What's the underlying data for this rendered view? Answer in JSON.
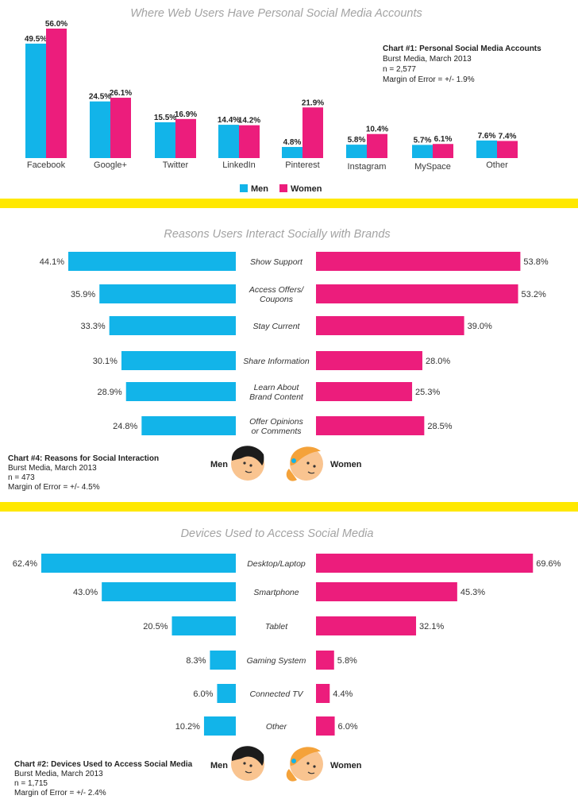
{
  "colors": {
    "men": "#12b4e9",
    "women": "#ec1d7c",
    "divider": "#ffe800"
  },
  "legend": {
    "men": "Men",
    "women": "Women"
  },
  "chart_data": [
    {
      "type": "bar",
      "title": "Where Web Users Have Personal Social Media Accounts",
      "categories": [
        "Facebook",
        "Google+",
        "Twitter",
        "LinkedIn",
        "Pinterest",
        "Instagram",
        "MySpace",
        "Other"
      ],
      "series": [
        {
          "name": "Men",
          "values": [
            49.5,
            24.5,
            15.5,
            14.4,
            4.8,
            5.8,
            5.7,
            7.6
          ],
          "labels": [
            "49.5%",
            "24.5%",
            "15.5%",
            "14.4%",
            "4.8%",
            "5.8%",
            "5.7%",
            "7.6%"
          ]
        },
        {
          "name": "Women",
          "values": [
            56.0,
            26.1,
            16.9,
            14.2,
            21.9,
            10.4,
            6.1,
            7.4
          ],
          "labels": [
            "56.0%",
            "26.1%",
            "16.9%",
            "14.2%",
            "21.9%",
            "10.4%",
            "6.1%",
            "7.4%"
          ]
        }
      ],
      "ylim": [
        0,
        60
      ],
      "legend_position": "bottom",
      "note": {
        "title": "Chart #1: Personal Social Media Accounts",
        "lines": [
          "Burst Media, March 2013",
          "n = 2,577",
          "Margin of Error = +/- 1.9%"
        ]
      }
    },
    {
      "type": "bar",
      "orientation": "horizontal-butterfly",
      "title": "Reasons Users Interact Socially with Brands",
      "categories": [
        [
          "Show Support"
        ],
        [
          "Access Offers/",
          "Coupons"
        ],
        [
          "Stay Current"
        ],
        [
          "Share Information"
        ],
        [
          "Learn About",
          "Brand Content"
        ],
        [
          "Offer Opinions",
          "or Comments"
        ]
      ],
      "series": [
        {
          "name": "Men",
          "values": [
            44.1,
            35.9,
            33.3,
            30.1,
            28.9,
            24.8
          ],
          "labels": [
            "44.1%",
            "35.9%",
            "33.3%",
            "30.1%",
            "28.9%",
            "24.8%"
          ]
        },
        {
          "name": "Women",
          "values": [
            53.8,
            53.2,
            39.0,
            28.0,
            25.3,
            28.5
          ],
          "labels": [
            "53.8%",
            "53.2%",
            "39.0%",
            "28.0%",
            "25.3%",
            "28.5%"
          ]
        }
      ],
      "xlim": [
        0,
        60
      ],
      "note": {
        "title": "Chart #4: Reasons for Social Interaction",
        "lines": [
          "Burst Media, March 2013",
          "n = 473",
          "Margin of Error = +/- 4.5%"
        ]
      }
    },
    {
      "type": "bar",
      "orientation": "horizontal-butterfly",
      "title": "Devices Used to Access Social Media",
      "categories": [
        [
          "Desktop/Laptop"
        ],
        [
          "Smartphone"
        ],
        [
          "Tablet"
        ],
        [
          "Gaming System"
        ],
        [
          "Connected TV"
        ],
        [
          "Other"
        ]
      ],
      "series": [
        {
          "name": "Men",
          "values": [
            62.4,
            43.0,
            20.5,
            8.3,
            6.0,
            10.2
          ],
          "labels": [
            "62.4%",
            "43.0%",
            "20.5%",
            "8.3%",
            "6.0%",
            "10.2%"
          ]
        },
        {
          "name": "Women",
          "values": [
            69.6,
            45.3,
            32.1,
            5.8,
            4.4,
            6.0
          ],
          "labels": [
            "69.6%",
            "45.3%",
            "32.1%",
            "5.8%",
            "4.4%",
            "6.0%"
          ]
        }
      ],
      "xlim": [
        0,
        70
      ],
      "note": {
        "title": "Chart #2: Devices Used to Access Social Media",
        "lines": [
          "Burst Media,  March 2013",
          "n = 1,715",
          "Margin of Error = +/- 2.4%"
        ]
      }
    }
  ]
}
